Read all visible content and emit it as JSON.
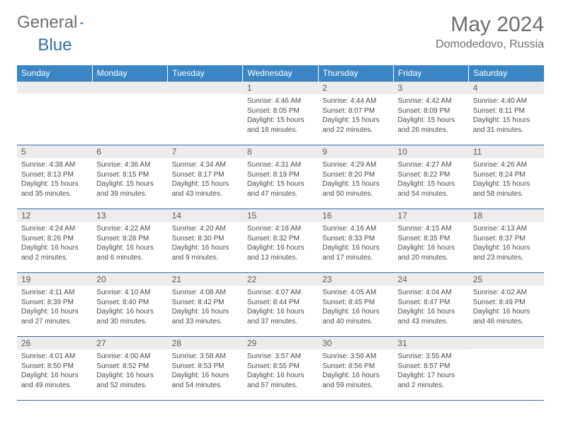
{
  "logo": {
    "text1": "General",
    "text2": "Blue"
  },
  "title": "May 2024",
  "location": "Domodedovo, Russia",
  "colors": {
    "header_bg": "#3a86c5",
    "header_text": "#ffffff",
    "date_bg": "#ececec",
    "border": "#2f6fa8",
    "body_text": "#4a4a4a",
    "title_text": "#6e6e6e"
  },
  "weekdays": [
    "Sunday",
    "Monday",
    "Tuesday",
    "Wednesday",
    "Thursday",
    "Friday",
    "Saturday"
  ],
  "weeks": [
    [
      {
        "date": "",
        "sunrise": "",
        "sunset": "",
        "daylight": ""
      },
      {
        "date": "",
        "sunrise": "",
        "sunset": "",
        "daylight": ""
      },
      {
        "date": "",
        "sunrise": "",
        "sunset": "",
        "daylight": ""
      },
      {
        "date": "1",
        "sunrise": "Sunrise: 4:46 AM",
        "sunset": "Sunset: 8:05 PM",
        "daylight": "Daylight: 15 hours and 18 minutes."
      },
      {
        "date": "2",
        "sunrise": "Sunrise: 4:44 AM",
        "sunset": "Sunset: 8:07 PM",
        "daylight": "Daylight: 15 hours and 22 minutes."
      },
      {
        "date": "3",
        "sunrise": "Sunrise: 4:42 AM",
        "sunset": "Sunset: 8:09 PM",
        "daylight": "Daylight: 15 hours and 26 minutes."
      },
      {
        "date": "4",
        "sunrise": "Sunrise: 4:40 AM",
        "sunset": "Sunset: 8:11 PM",
        "daylight": "Daylight: 15 hours and 31 minutes."
      }
    ],
    [
      {
        "date": "5",
        "sunrise": "Sunrise: 4:38 AM",
        "sunset": "Sunset: 8:13 PM",
        "daylight": "Daylight: 15 hours and 35 minutes."
      },
      {
        "date": "6",
        "sunrise": "Sunrise: 4:36 AM",
        "sunset": "Sunset: 8:15 PM",
        "daylight": "Daylight: 15 hours and 39 minutes."
      },
      {
        "date": "7",
        "sunrise": "Sunrise: 4:34 AM",
        "sunset": "Sunset: 8:17 PM",
        "daylight": "Daylight: 15 hours and 43 minutes."
      },
      {
        "date": "8",
        "sunrise": "Sunrise: 4:31 AM",
        "sunset": "Sunset: 8:19 PM",
        "daylight": "Daylight: 15 hours and 47 minutes."
      },
      {
        "date": "9",
        "sunrise": "Sunrise: 4:29 AM",
        "sunset": "Sunset: 8:20 PM",
        "daylight": "Daylight: 15 hours and 50 minutes."
      },
      {
        "date": "10",
        "sunrise": "Sunrise: 4:27 AM",
        "sunset": "Sunset: 8:22 PM",
        "daylight": "Daylight: 15 hours and 54 minutes."
      },
      {
        "date": "11",
        "sunrise": "Sunrise: 4:26 AM",
        "sunset": "Sunset: 8:24 PM",
        "daylight": "Daylight: 15 hours and 58 minutes."
      }
    ],
    [
      {
        "date": "12",
        "sunrise": "Sunrise: 4:24 AM",
        "sunset": "Sunset: 8:26 PM",
        "daylight": "Daylight: 16 hours and 2 minutes."
      },
      {
        "date": "13",
        "sunrise": "Sunrise: 4:22 AM",
        "sunset": "Sunset: 8:28 PM",
        "daylight": "Daylight: 16 hours and 6 minutes."
      },
      {
        "date": "14",
        "sunrise": "Sunrise: 4:20 AM",
        "sunset": "Sunset: 8:30 PM",
        "daylight": "Daylight: 16 hours and 9 minutes."
      },
      {
        "date": "15",
        "sunrise": "Sunrise: 4:18 AM",
        "sunset": "Sunset: 8:32 PM",
        "daylight": "Daylight: 16 hours and 13 minutes."
      },
      {
        "date": "16",
        "sunrise": "Sunrise: 4:16 AM",
        "sunset": "Sunset: 8:33 PM",
        "daylight": "Daylight: 16 hours and 17 minutes."
      },
      {
        "date": "17",
        "sunrise": "Sunrise: 4:15 AM",
        "sunset": "Sunset: 8:35 PM",
        "daylight": "Daylight: 16 hours and 20 minutes."
      },
      {
        "date": "18",
        "sunrise": "Sunrise: 4:13 AM",
        "sunset": "Sunset: 8:37 PM",
        "daylight": "Daylight: 16 hours and 23 minutes."
      }
    ],
    [
      {
        "date": "19",
        "sunrise": "Sunrise: 4:11 AM",
        "sunset": "Sunset: 8:39 PM",
        "daylight": "Daylight: 16 hours and 27 minutes."
      },
      {
        "date": "20",
        "sunrise": "Sunrise: 4:10 AM",
        "sunset": "Sunset: 8:40 PM",
        "daylight": "Daylight: 16 hours and 30 minutes."
      },
      {
        "date": "21",
        "sunrise": "Sunrise: 4:08 AM",
        "sunset": "Sunset: 8:42 PM",
        "daylight": "Daylight: 16 hours and 33 minutes."
      },
      {
        "date": "22",
        "sunrise": "Sunrise: 4:07 AM",
        "sunset": "Sunset: 8:44 PM",
        "daylight": "Daylight: 16 hours and 37 minutes."
      },
      {
        "date": "23",
        "sunrise": "Sunrise: 4:05 AM",
        "sunset": "Sunset: 8:45 PM",
        "daylight": "Daylight: 16 hours and 40 minutes."
      },
      {
        "date": "24",
        "sunrise": "Sunrise: 4:04 AM",
        "sunset": "Sunset: 8:47 PM",
        "daylight": "Daylight: 16 hours and 43 minutes."
      },
      {
        "date": "25",
        "sunrise": "Sunrise: 4:02 AM",
        "sunset": "Sunset: 8:49 PM",
        "daylight": "Daylight: 16 hours and 46 minutes."
      }
    ],
    [
      {
        "date": "26",
        "sunrise": "Sunrise: 4:01 AM",
        "sunset": "Sunset: 8:50 PM",
        "daylight": "Daylight: 16 hours and 49 minutes."
      },
      {
        "date": "27",
        "sunrise": "Sunrise: 4:00 AM",
        "sunset": "Sunset: 8:52 PM",
        "daylight": "Daylight: 16 hours and 52 minutes."
      },
      {
        "date": "28",
        "sunrise": "Sunrise: 3:58 AM",
        "sunset": "Sunset: 8:53 PM",
        "daylight": "Daylight: 16 hours and 54 minutes."
      },
      {
        "date": "29",
        "sunrise": "Sunrise: 3:57 AM",
        "sunset": "Sunset: 8:55 PM",
        "daylight": "Daylight: 16 hours and 57 minutes."
      },
      {
        "date": "30",
        "sunrise": "Sunrise: 3:56 AM",
        "sunset": "Sunset: 8:56 PM",
        "daylight": "Daylight: 16 hours and 59 minutes."
      },
      {
        "date": "31",
        "sunrise": "Sunrise: 3:55 AM",
        "sunset": "Sunset: 8:57 PM",
        "daylight": "Daylight: 17 hours and 2 minutes."
      },
      {
        "date": "",
        "sunrise": "",
        "sunset": "",
        "daylight": ""
      }
    ]
  ]
}
